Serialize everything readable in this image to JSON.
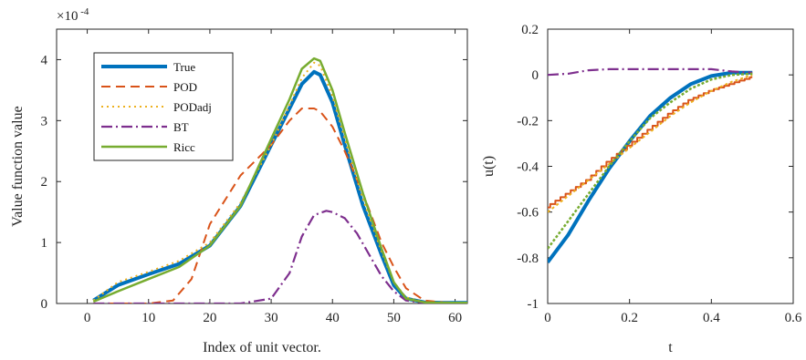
{
  "chart_data": [
    {
      "type": "line",
      "xlabel": "Index of unit vector.",
      "ylabel": "Value function value",
      "yscale_label": "×10",
      "yscale_exp": "-4",
      "xlim": [
        -5,
        62
      ],
      "ylim": [
        0,
        4.5
      ],
      "xticks": [
        "0",
        "10",
        "20",
        "30",
        "40",
        "50",
        "60"
      ],
      "yticks": [
        "0",
        "1",
        "2",
        "3",
        "4"
      ],
      "legend_position": "top-left",
      "series": [
        {
          "name": "True",
          "color": "#0072BD",
          "dash": "solid",
          "width": 4,
          "x": [
            1,
            5,
            10,
            15,
            20,
            25,
            30,
            33,
            35,
            37,
            38,
            40,
            42,
            45,
            48,
            50,
            52,
            55,
            58,
            62
          ],
          "y": [
            0.05,
            0.3,
            0.48,
            0.65,
            0.95,
            1.6,
            2.6,
            3.2,
            3.6,
            3.8,
            3.75,
            3.3,
            2.6,
            1.6,
            0.8,
            0.3,
            0.08,
            0.02,
            0.01,
            0.01
          ]
        },
        {
          "name": "POD",
          "color": "#D95319",
          "dash": "10,6",
          "width": 2,
          "x": [
            1,
            10,
            14,
            17,
            20,
            25,
            30,
            33,
            35,
            37,
            38,
            40,
            42,
            45,
            48,
            50,
            52,
            55,
            58,
            62
          ],
          "y": [
            0,
            0,
            0.05,
            0.4,
            1.3,
            2.1,
            2.6,
            3.0,
            3.2,
            3.2,
            3.15,
            2.9,
            2.5,
            1.8,
            1.0,
            0.6,
            0.25,
            0.05,
            0.02,
            0.01
          ]
        },
        {
          "name": "PODadj",
          "color": "#EDB120",
          "dash": "2,4",
          "width": 2,
          "x": [
            1,
            5,
            10,
            15,
            20,
            25,
            30,
            33,
            35,
            37,
            38,
            40,
            42,
            45,
            48,
            50,
            52,
            55,
            58,
            62
          ],
          "y": [
            0.05,
            0.35,
            0.52,
            0.7,
            1.0,
            1.65,
            2.6,
            3.25,
            3.7,
            3.95,
            3.9,
            3.4,
            2.7,
            1.7,
            0.85,
            0.35,
            0.1,
            0.02,
            0.01,
            0.01
          ]
        },
        {
          "name": "BT",
          "color": "#7E2F8E",
          "dash": "12,4,2,4",
          "width": 2.2,
          "x": [
            1,
            10,
            15,
            20,
            25,
            30,
            33,
            35,
            37,
            39,
            40,
            42,
            44,
            46,
            48,
            50,
            52,
            55,
            58,
            62
          ],
          "y": [
            0,
            0,
            0,
            0,
            0,
            0.08,
            0.5,
            1.1,
            1.45,
            1.52,
            1.5,
            1.4,
            1.15,
            0.8,
            0.45,
            0.2,
            0.05,
            0.01,
            0,
            0
          ]
        },
        {
          "name": "Ricc",
          "color": "#77AC30",
          "dash": "solid",
          "width": 2.5,
          "x": [
            1,
            5,
            10,
            15,
            20,
            25,
            30,
            33,
            35,
            37,
            38,
            40,
            42,
            45,
            48,
            50,
            52,
            55,
            58,
            62
          ],
          "y": [
            0.03,
            0.2,
            0.4,
            0.6,
            0.95,
            1.6,
            2.7,
            3.35,
            3.85,
            4.02,
            3.98,
            3.5,
            2.8,
            1.8,
            0.9,
            0.35,
            0.08,
            0.02,
            0.01,
            0.01
          ]
        }
      ]
    },
    {
      "type": "line",
      "xlabel": "t",
      "ylabel": "u(t)",
      "xlim": [
        0,
        0.6
      ],
      "ylim": [
        -1,
        0.2
      ],
      "xticks": [
        "0",
        "0.2",
        "0.4",
        "0.6"
      ],
      "yticks": [
        "0.2",
        "0",
        "-0.2",
        "-0.4",
        "-0.6",
        "-0.8",
        "-1"
      ],
      "series": [
        {
          "name": "True",
          "color": "#0072BD",
          "dash": "solid",
          "width": 4,
          "x": [
            0,
            0.05,
            0.1,
            0.15,
            0.2,
            0.25,
            0.3,
            0.35,
            0.4,
            0.45,
            0.5
          ],
          "y": [
            -0.82,
            -0.7,
            -0.55,
            -0.41,
            -0.29,
            -0.18,
            -0.1,
            -0.04,
            -0.005,
            0.01,
            0.01
          ]
        },
        {
          "name": "POD",
          "color": "#D95319",
          "dash": "solid",
          "width": 2,
          "stair": true,
          "x": [
            0,
            0.05,
            0.1,
            0.15,
            0.2,
            0.25,
            0.3,
            0.35,
            0.4,
            0.45,
            0.5
          ],
          "y": [
            -0.58,
            -0.52,
            -0.46,
            -0.38,
            -0.31,
            -0.24,
            -0.17,
            -0.11,
            -0.07,
            -0.04,
            -0.01
          ]
        },
        {
          "name": "PODadj",
          "color": "#EDB120",
          "dash": "3,3",
          "width": 2,
          "x": [
            0,
            0.05,
            0.1,
            0.15,
            0.2,
            0.25,
            0.3,
            0.35,
            0.4,
            0.45,
            0.5
          ],
          "y": [
            -0.6,
            -0.53,
            -0.46,
            -0.39,
            -0.32,
            -0.25,
            -0.18,
            -0.12,
            -0.07,
            -0.03,
            0
          ]
        },
        {
          "name": "BT",
          "color": "#7E2F8E",
          "dash": "12,4,2,4",
          "width": 2.2,
          "x": [
            0,
            0.05,
            0.1,
            0.15,
            0.2,
            0.25,
            0.3,
            0.35,
            0.4,
            0.45,
            0.5
          ],
          "y": [
            0,
            0.005,
            0.02,
            0.025,
            0.025,
            0.025,
            0.025,
            0.025,
            0.025,
            0.015,
            0.01
          ]
        },
        {
          "name": "Ricc",
          "color": "#77AC30",
          "dash": "3,2",
          "width": 2.5,
          "x": [
            0,
            0.05,
            0.1,
            0.15,
            0.2,
            0.25,
            0.3,
            0.35,
            0.4,
            0.45,
            0.5
          ],
          "y": [
            -0.76,
            -0.64,
            -0.52,
            -0.4,
            -0.29,
            -0.19,
            -0.12,
            -0.06,
            -0.02,
            0,
            0.005
          ]
        }
      ]
    }
  ]
}
